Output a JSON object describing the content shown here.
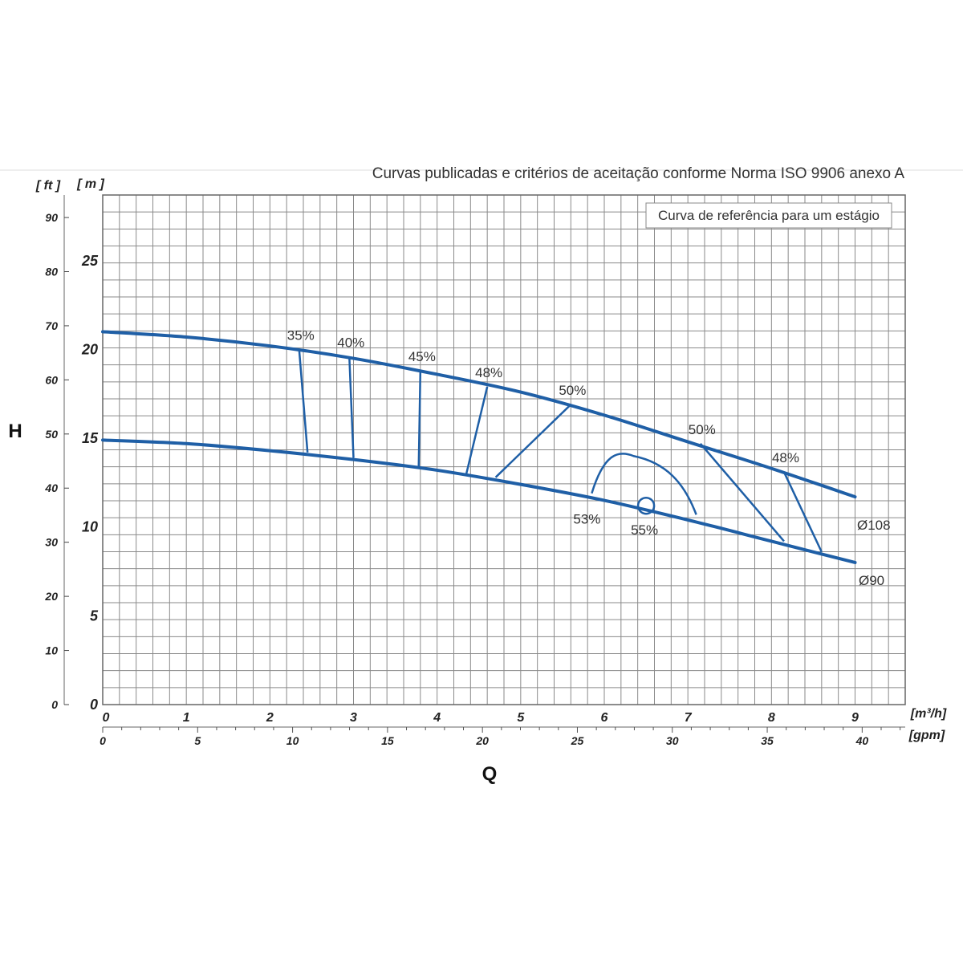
{
  "chart_data": {
    "type": "line",
    "title": "Curvas publicadas e critérios de aceitação conforme Norma ISO 9906 anexo A",
    "reference_box": "Curva de referência para um estágio",
    "ylabel": "H",
    "xlabel": "Q",
    "y_units": {
      "primary": "[ m ]",
      "secondary": "[ ft ]"
    },
    "x_units": {
      "primary": "[m³/h]",
      "secondary": "[gpm]"
    },
    "xlim": [
      0,
      9.6
    ],
    "ylim": [
      0,
      28.7
    ],
    "y_ticks_m": [
      0,
      5,
      10,
      15,
      20,
      25
    ],
    "y_ticks_ft": [
      0,
      10,
      20,
      30,
      40,
      50,
      60,
      70,
      80,
      90
    ],
    "x_ticks_m3h": [
      0,
      1,
      2,
      3,
      4,
      5,
      6,
      7,
      8,
      9
    ],
    "x_ticks_gpm": [
      0,
      5,
      10,
      15,
      20,
      25,
      30,
      35,
      40
    ],
    "grid": true,
    "series": [
      {
        "name": "Ø108",
        "color": "#1f5fa6",
        "points": [
          [
            0,
            21.0
          ],
          [
            1,
            20.7
          ],
          [
            2,
            20.2
          ],
          [
            3,
            19.5
          ],
          [
            4,
            18.6
          ],
          [
            5,
            17.6
          ],
          [
            6,
            16.3
          ],
          [
            7,
            14.8
          ],
          [
            8,
            13.3
          ],
          [
            9,
            11.7
          ]
        ]
      },
      {
        "name": "Ø90",
        "color": "#1f5fa6",
        "points": [
          [
            0,
            14.9
          ],
          [
            1,
            14.7
          ],
          [
            2,
            14.3
          ],
          [
            3,
            13.8
          ],
          [
            4,
            13.2
          ],
          [
            5,
            12.4
          ],
          [
            6,
            11.5
          ],
          [
            7,
            10.4
          ],
          [
            8,
            9.2
          ],
          [
            9,
            8.0
          ]
        ]
      }
    ],
    "efficiency_lines": [
      {
        "label": "35%",
        "top": [
          2.35,
          20.0
        ],
        "bottom": [
          2.45,
          14.2
        ]
      },
      {
        "label": "40%",
        "top": [
          2.95,
          19.6
        ],
        "bottom": [
          3.0,
          13.9
        ]
      },
      {
        "label": "45%",
        "top": [
          3.8,
          18.8
        ],
        "bottom": [
          3.78,
          13.4
        ]
      },
      {
        "label": "48%",
        "top": [
          4.6,
          17.9
        ],
        "bottom": [
          4.35,
          13.0
        ]
      },
      {
        "label": "50%",
        "top": [
          5.6,
          16.9
        ],
        "bottom": [
          4.7,
          12.8
        ]
      },
      {
        "label": "50%",
        "top": [
          7.15,
          14.7
        ],
        "bottom": [
          8.15,
          9.2
        ]
      },
      {
        "label": "48%",
        "top": [
          8.15,
          13.1
        ],
        "bottom": [
          8.6,
          8.6
        ]
      }
    ],
    "efficiency_loop": {
      "label_left": "53%",
      "label_right": "55%",
      "start": [
        5.85,
        11.9
      ],
      "peak": [
        6.35,
        14.0
      ],
      "end": [
        7.1,
        10.7
      ]
    },
    "best_efficiency_point": {
      "label": "55%",
      "x": 6.5,
      "y": 11.2
    },
    "labels": {
      "title": "Curvas publicadas e critérios de aceitação conforme Norma ISO 9906 anexo A",
      "reference_box": "Curva de referência para um estágio",
      "y_axis": "H",
      "x_axis": "Q",
      "unit_m": "[ m ]",
      "unit_ft": "[ ft ]",
      "unit_m3h": "[m³/h]",
      "unit_gpm": "[gpm]",
      "series_108": "Ø108",
      "series_90": "Ø90"
    }
  }
}
